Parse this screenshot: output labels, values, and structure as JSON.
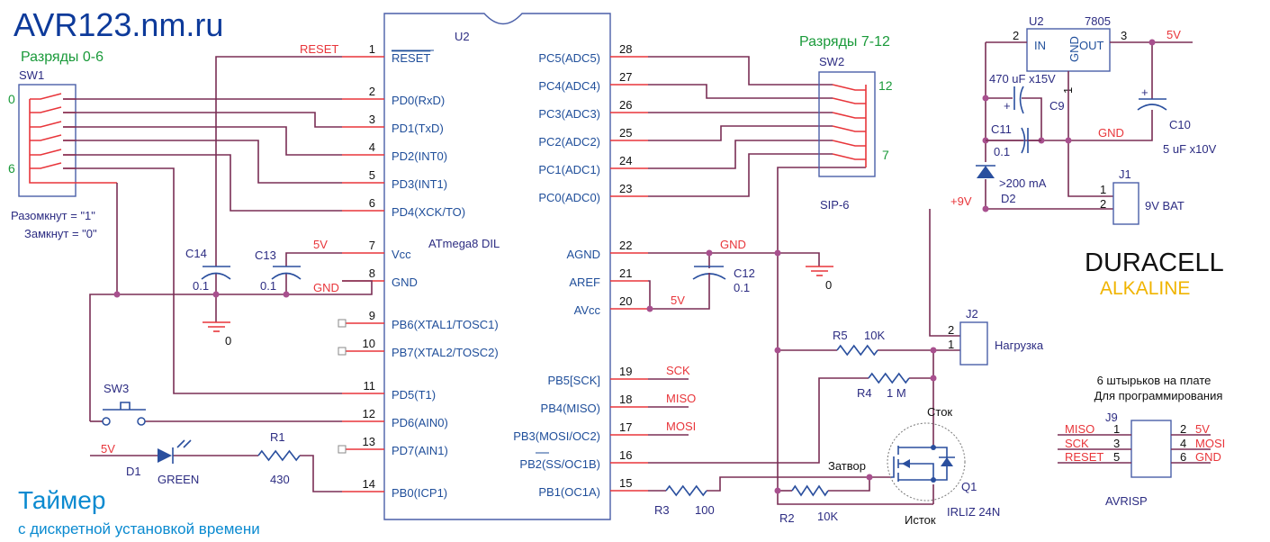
{
  "site_title": "AVR123.nm.ru",
  "footer": {
    "title": "Таймер",
    "subtitle": "с дискретной установкой времени"
  },
  "sw1": {
    "group": "Разряды 0-6",
    "ref": "SW1",
    "label_top": "0",
    "label_bottom": "6",
    "note_open": "Разомкнут = \"1\"",
    "note_closed": "Замкнут = \"0\""
  },
  "sw2": {
    "group": "Разряды 7-12",
    "ref": "SW2",
    "label_top": "12",
    "label_bottom": "7",
    "package": "SIP-6"
  },
  "sw3": {
    "ref": "SW3"
  },
  "mcu": {
    "ref": "U2",
    "name": "ATmega8 DIL",
    "left_pins": [
      {
        "num": "1",
        "name": "RESET"
      },
      {
        "num": "2",
        "name": "PD0(RxD)"
      },
      {
        "num": "3",
        "name": "PD1(TxD)"
      },
      {
        "num": "4",
        "name": "PD2(INT0)"
      },
      {
        "num": "5",
        "name": "PD3(INT1)"
      },
      {
        "num": "6",
        "name": "PD4(XCK/TO)"
      },
      {
        "num": "7",
        "name": "Vcc"
      },
      {
        "num": "8",
        "name": "GND"
      },
      {
        "num": "9",
        "name": "PB6(XTAL1/TOSC1)"
      },
      {
        "num": "10",
        "name": "PB7(XTAL2/TOSC2)"
      },
      {
        "num": "11",
        "name": "PD5(T1)"
      },
      {
        "num": "12",
        "name": "PD6(AIN0)"
      },
      {
        "num": "13",
        "name": "PD7(AIN1)"
      },
      {
        "num": "14",
        "name": "PB0(ICP1)"
      }
    ],
    "right_pins": [
      {
        "num": "28",
        "name": "PC5(ADC5)"
      },
      {
        "num": "27",
        "name": "PC4(ADC4)"
      },
      {
        "num": "26",
        "name": "PC3(ADC3)"
      },
      {
        "num": "25",
        "name": "PC2(ADC2)"
      },
      {
        "num": "24",
        "name": "PC1(ADC1)"
      },
      {
        "num": "23",
        "name": "PC0(ADC0)"
      },
      {
        "num": "22",
        "name": "AGND"
      },
      {
        "num": "21",
        "name": "AREF"
      },
      {
        "num": "20",
        "name": "AVcc"
      },
      {
        "num": "19",
        "name": "PB5[SCK]"
      },
      {
        "num": "18",
        "name": "PB4(MISO)"
      },
      {
        "num": "17",
        "name": "PB3(MOSI/OC2)"
      },
      {
        "num": "16",
        "name": "PB2(SS/OC1B)"
      },
      {
        "num": "15",
        "name": "PB1(OC1A)"
      }
    ]
  },
  "nets": {
    "reset": "RESET",
    "v5": "5V",
    "gnd": "GND",
    "v9": "+9V",
    "sck": "SCK",
    "miso": "MISO",
    "mosi": "MOSI",
    "ground_ref": "0"
  },
  "caps": {
    "c14": {
      "ref": "C14",
      "value": "0.1"
    },
    "c13": {
      "ref": "C13",
      "value": "0.1"
    },
    "c12": {
      "ref": "C12",
      "value": "0.1"
    },
    "c9": {
      "ref": "C9",
      "value": "470 uF x15V"
    },
    "c11": {
      "ref": "C11",
      "value": "0.1"
    },
    "c10": {
      "ref": "C10",
      "value": "5 uF x10V"
    }
  },
  "resistors": {
    "r1": {
      "ref": "R1",
      "value": "430"
    },
    "r2": {
      "ref": "R2",
      "value": "10K"
    },
    "r3": {
      "ref": "R3",
      "value": "100"
    },
    "r4": {
      "ref": "R4",
      "value": "1 M"
    },
    "r5": {
      "ref": "R5",
      "value": "10K"
    }
  },
  "d1": {
    "ref": "D1",
    "value": "GREEN"
  },
  "d2": {
    "ref": "D2",
    "value": ">200 mA"
  },
  "regulator": {
    "ref": "U2",
    "part": "7805",
    "in": "IN",
    "gnd": "GND",
    "out": "OUT",
    "pin_in": "2",
    "pin_gnd": "1",
    "pin_out": "3"
  },
  "j1": {
    "ref": "J1",
    "label": "9V BAT",
    "pin1": "1",
    "pin2": "2"
  },
  "battery": {
    "brand": "DURACELL",
    "type": "ALKALINE"
  },
  "j2": {
    "ref": "J2",
    "label": "Нагрузка",
    "pin1": "1",
    "pin2": "2"
  },
  "q1": {
    "ref": "Q1",
    "part": "IRLIZ 24N",
    "drain": "Сток",
    "gate": "Затвор",
    "source": "Исток"
  },
  "j9": {
    "ref": "J9",
    "name": "AVRISP",
    "note1": "6 штырьков на плате",
    "note2": "Для программирования",
    "left": [
      {
        "num": "1",
        "net": "MISO"
      },
      {
        "num": "3",
        "net": "SCK"
      },
      {
        "num": "5",
        "net": "RESET"
      }
    ],
    "right": [
      {
        "num": "2",
        "net": "5V"
      },
      {
        "num": "4",
        "net": "MOSI"
      },
      {
        "num": "6",
        "net": "GND"
      }
    ]
  },
  "colors": {
    "title": "#0d3a9a",
    "group": "#1a9a3a",
    "footer": "#0a8ad0",
    "wire": "#7a2e55",
    "net_label": "#e8353a",
    "alkaline": "#f0b400"
  }
}
